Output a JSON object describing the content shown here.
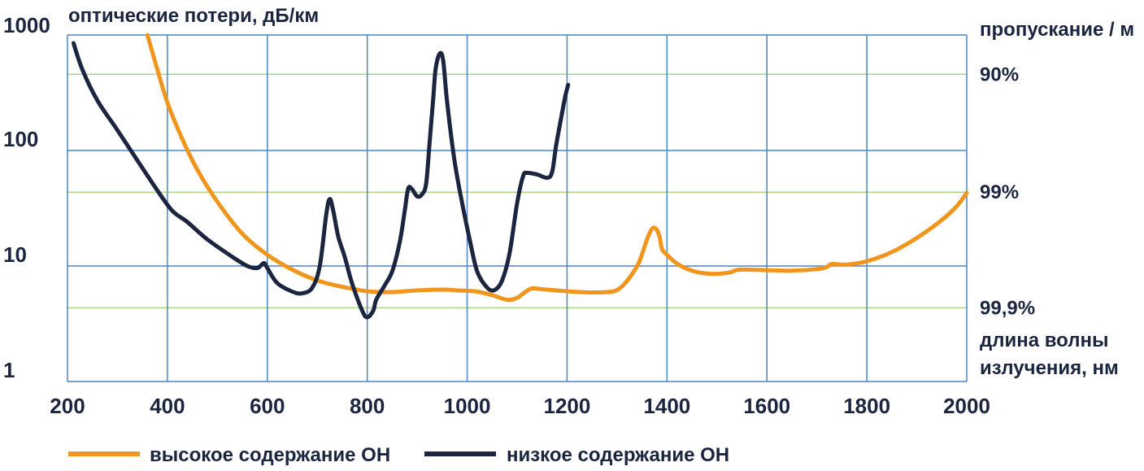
{
  "chart_data": {
    "type": "line",
    "y_axis_label": "оптические потери, дБ/км",
    "right_axis_label": "пропускание / м",
    "x_axis_label_line1": "длина волны",
    "x_axis_label_line2": "излучения, нм",
    "x_scale": "linear",
    "y_scale": "log",
    "xlim": [
      200,
      2000
    ],
    "ylim": [
      1,
      1000
    ],
    "grid": true,
    "legend_position": "bottom-left",
    "x_ticks": [
      "200",
      "400",
      "600",
      "800",
      "1000",
      "1200",
      "1400",
      "1600",
      "1800",
      "2000"
    ],
    "y_ticks": [
      "1000",
      "100",
      "10",
      "1"
    ],
    "transmission_ticks": [
      {
        "label": "90%",
        "loss": 457
      },
      {
        "label": "99%",
        "loss": 43.6
      },
      {
        "label": "99,9%",
        "loss": 4.35
      }
    ],
    "series": [
      {
        "name": "высокое содержание OH",
        "color": "#f0961e",
        "points": [
          [
            360,
            1000
          ],
          [
            380,
            500
          ],
          [
            400,
            260
          ],
          [
            430,
            125
          ],
          [
            460,
            68
          ],
          [
            500,
            36
          ],
          [
            550,
            19
          ],
          [
            600,
            12.5
          ],
          [
            650,
            9.3
          ],
          [
            700,
            7.5
          ],
          [
            750,
            6.6
          ],
          [
            800,
            6.05
          ],
          [
            850,
            5.95
          ],
          [
            900,
            6.15
          ],
          [
            950,
            6.25
          ],
          [
            980,
            6.15
          ],
          [
            1000,
            6.1
          ],
          [
            1020,
            6.0
          ],
          [
            1050,
            5.6
          ],
          [
            1080,
            5.1
          ],
          [
            1100,
            5.3
          ],
          [
            1115,
            5.9
          ],
          [
            1130,
            6.4
          ],
          [
            1150,
            6.3
          ],
          [
            1200,
            6.05
          ],
          [
            1250,
            5.9
          ],
          [
            1290,
            6.0
          ],
          [
            1305,
            6.4
          ],
          [
            1315,
            7.0
          ],
          [
            1330,
            8.5
          ],
          [
            1345,
            11
          ],
          [
            1360,
            17
          ],
          [
            1370,
            21
          ],
          [
            1378,
            21
          ],
          [
            1385,
            18
          ],
          [
            1390,
            14
          ],
          [
            1400,
            12.5
          ],
          [
            1420,
            10.5
          ],
          [
            1450,
            9.1
          ],
          [
            1480,
            8.6
          ],
          [
            1510,
            8.6
          ],
          [
            1530,
            8.9
          ],
          [
            1545,
            9.3
          ],
          [
            1600,
            9.2
          ],
          [
            1650,
            9.1
          ],
          [
            1700,
            9.4
          ],
          [
            1720,
            9.8
          ],
          [
            1730,
            10.4
          ],
          [
            1760,
            10.3
          ],
          [
            1800,
            11.0
          ],
          [
            1850,
            13.2
          ],
          [
            1900,
            17.5
          ],
          [
            1950,
            25
          ],
          [
            1980,
            33
          ],
          [
            2000,
            43
          ]
        ]
      },
      {
        "name": "низкое содержание OH",
        "color": "#1c2540",
        "points": [
          [
            212,
            850
          ],
          [
            230,
            500
          ],
          [
            260,
            270
          ],
          [
            300,
            150
          ],
          [
            340,
            82
          ],
          [
            380,
            45
          ],
          [
            410,
            30
          ],
          [
            440,
            24
          ],
          [
            480,
            17
          ],
          [
            530,
            12
          ],
          [
            560,
            10
          ],
          [
            580,
            9.6
          ],
          [
            593,
            10.6
          ],
          [
            600,
            9.6
          ],
          [
            620,
            7.1
          ],
          [
            650,
            6.0
          ],
          [
            670,
            5.8
          ],
          [
            690,
            6.5
          ],
          [
            705,
            10
          ],
          [
            718,
            28
          ],
          [
            725,
            38
          ],
          [
            732,
            30
          ],
          [
            742,
            18
          ],
          [
            755,
            12
          ],
          [
            770,
            7
          ],
          [
            790,
            4.1
          ],
          [
            800,
            3.6
          ],
          [
            812,
            4.1
          ],
          [
            818,
            5.1
          ],
          [
            835,
            6.8
          ],
          [
            850,
            9
          ],
          [
            865,
            16
          ],
          [
            875,
            30
          ],
          [
            882,
            47
          ],
          [
            890,
            46
          ],
          [
            900,
            40
          ],
          [
            910,
            42
          ],
          [
            918,
            52
          ],
          [
            925,
            120
          ],
          [
            932,
            280
          ],
          [
            937,
            510
          ],
          [
            945,
            690
          ],
          [
            952,
            600
          ],
          [
            960,
            260
          ],
          [
            975,
            80
          ],
          [
            990,
            35
          ],
          [
            1005,
            17
          ],
          [
            1020,
            9
          ],
          [
            1040,
            6.5
          ],
          [
            1055,
            6.2
          ],
          [
            1070,
            7.5
          ],
          [
            1085,
            13
          ],
          [
            1100,
            35
          ],
          [
            1112,
            60
          ],
          [
            1120,
            64
          ],
          [
            1140,
            62
          ],
          [
            1160,
            58
          ],
          [
            1170,
            65
          ],
          [
            1178,
            110
          ],
          [
            1188,
            190
          ],
          [
            1196,
            290
          ],
          [
            1202,
            370
          ]
        ]
      }
    ]
  }
}
